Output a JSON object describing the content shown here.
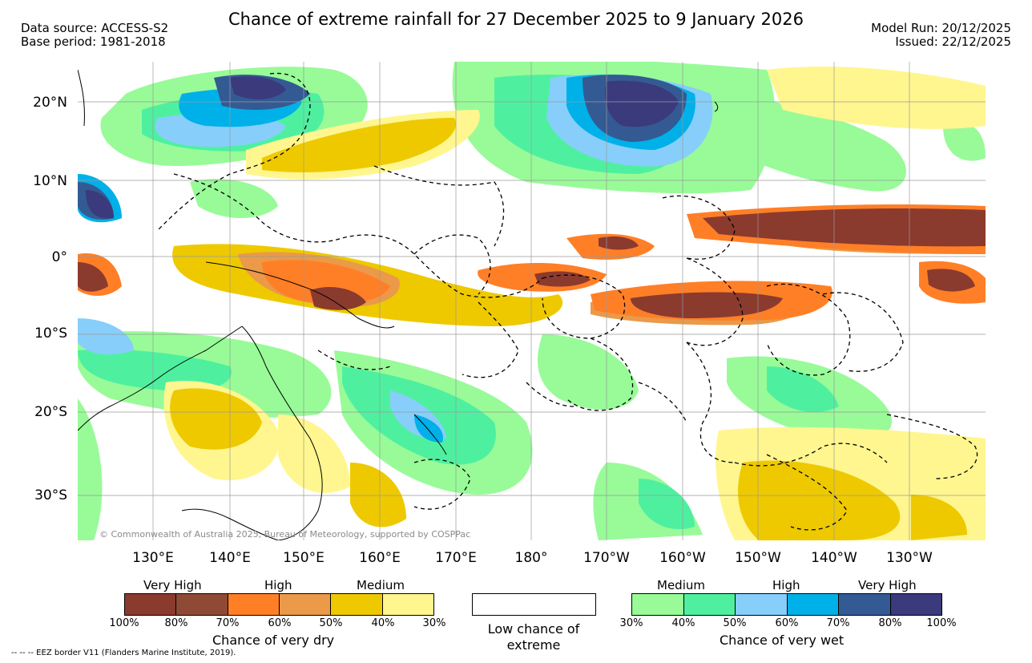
{
  "header": {
    "title": "Chance of extreme rainfall for 27 December 2025 to 9 January 2026",
    "data_source": "Data source: ACCESS-S2",
    "base_period": "Base period: 1981-2018",
    "model_run": "Model Run: 20/12/2025",
    "issued": "Issued: 22/12/2025"
  },
  "axes": {
    "latitudes": [
      "20°N",
      "10°N",
      "0°",
      "10°S",
      "20°S",
      "30°S"
    ],
    "longitudes": [
      "130°E",
      "140°E",
      "150°E",
      "160°E",
      "170°E",
      "180°",
      "170°W",
      "160°W",
      "150°W",
      "140°W",
      "130°W"
    ]
  },
  "copyright": "© Commonwealth of Australia 2025, Bureau of Meteorology, supported by COSPPac",
  "legend": {
    "dry": {
      "title": "Chance of very dry",
      "headings": [
        "Very High",
        "High",
        "Medium"
      ],
      "colors": [
        "#8b3a2e",
        "#8f4a36",
        "#ff7f27",
        "#ea9a48",
        "#eec900",
        "#fff68f"
      ],
      "ticks": [
        "100%",
        "80%",
        "70%",
        "60%",
        "50%",
        "40%",
        "30%"
      ]
    },
    "low": {
      "label": "Low chance of extreme",
      "color": "#ffffff"
    },
    "wet": {
      "title": "Chance of very wet",
      "headings": [
        "Medium",
        "High",
        "Very High"
      ],
      "colors": [
        "#98fb98",
        "#4ef0a0",
        "#87cefa",
        "#00b0e8",
        "#345a94",
        "#3a3a7c"
      ],
      "ticks": [
        "30%",
        "40%",
        "50%",
        "60%",
        "70%",
        "80%",
        "100%"
      ]
    }
  },
  "eez_note": "-- -- -- EEZ border V11 (Flanders Marine Institute, 2019)."
}
